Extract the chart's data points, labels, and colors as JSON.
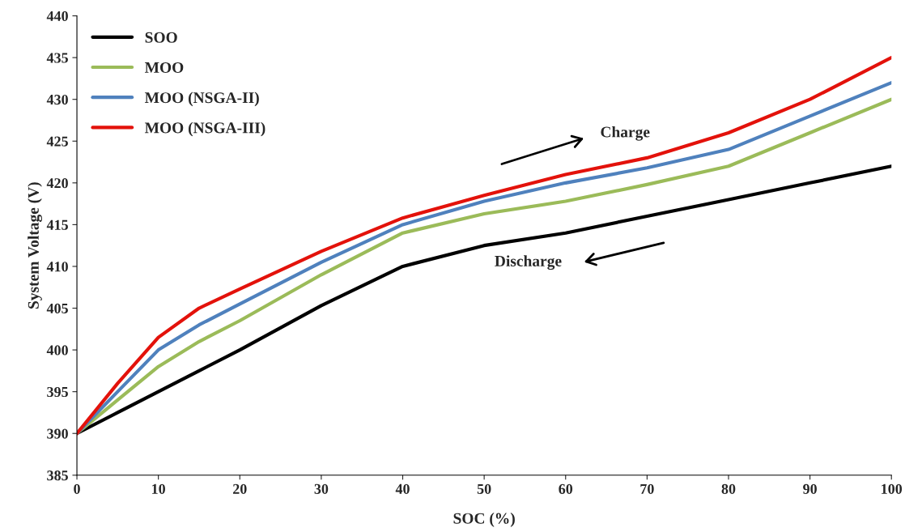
{
  "chart_data": {
    "type": "line",
    "xlabel": "SOC (%)",
    "ylabel": "System Voltage (V)",
    "x": [
      0,
      5,
      10,
      15,
      20,
      30,
      40,
      50,
      60,
      70,
      80,
      90,
      100
    ],
    "series": [
      {
        "name": "SOO",
        "color": "#000000",
        "values": [
          390,
          392.5,
          395,
          397.5,
          400,
          405.3,
          410,
          412.5,
          414,
          416,
          418,
          420,
          422
        ]
      },
      {
        "name": "MOO",
        "color": "#9bbb59",
        "values": [
          390,
          394,
          398,
          401,
          403.5,
          409,
          414,
          416.3,
          417.8,
          419.8,
          422,
          426,
          430
        ]
      },
      {
        "name": "MOO (NSGA-II)",
        "color": "#4f81bd",
        "values": [
          390,
          395,
          400,
          403,
          405.5,
          410.5,
          415,
          417.8,
          420,
          421.8,
          424,
          428,
          432
        ]
      },
      {
        "name": "MOO (NSGA-III)",
        "color": "#e3120b",
        "values": [
          390,
          396,
          401.5,
          405,
          407.3,
          411.8,
          415.8,
          418.5,
          421,
          423,
          426,
          430,
          435
        ]
      }
    ],
    "xlim": [
      0,
      100
    ],
    "xticks": [
      0,
      10,
      20,
      30,
      40,
      50,
      60,
      70,
      80,
      90,
      100
    ],
    "ylim": [
      385,
      440
    ],
    "yticks": [
      385,
      390,
      395,
      400,
      405,
      410,
      415,
      420,
      425,
      430,
      435,
      440
    ],
    "grid": false,
    "legend": "top left",
    "marker": "none",
    "line_style": "solid",
    "annotations": [
      "Charge",
      "Discharge"
    ]
  }
}
